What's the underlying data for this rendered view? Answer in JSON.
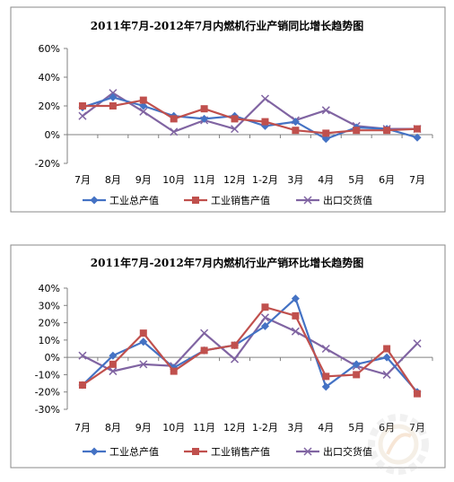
{
  "colors": {
    "s1": "#4472C4",
    "s2": "#C0504D",
    "s3": "#8064A2",
    "frame": "#888888",
    "axis": "#808080"
  },
  "legend": [
    "工业总产值",
    "工业销售产值",
    "出口交货值"
  ],
  "chart_data": [
    {
      "type": "line",
      "title": "2011年7月-2012年7月内燃机行业产销同比增长趋势图",
      "categories": [
        "7月",
        "8月",
        "9月",
        "10月",
        "11月",
        "12月",
        "1-2月",
        "3月",
        "4月",
        "5月",
        "6月",
        "7月"
      ],
      "yticks": [
        "60%",
        "40%",
        "20%",
        "0%",
        "-20%"
      ],
      "ylim": [
        -20,
        60
      ],
      "series": [
        {
          "name": "工业总产值",
          "values": [
            19,
            26,
            20,
            13,
            11,
            13,
            6,
            9,
            -3,
            5,
            4,
            -2
          ]
        },
        {
          "name": "工业销售产值",
          "values": [
            20,
            20,
            24,
            11,
            18,
            11,
            9,
            3,
            1,
            3,
            3,
            4
          ]
        },
        {
          "name": "出口交货值",
          "values": [
            13,
            29,
            16,
            2,
            10,
            4,
            25,
            10,
            17,
            6,
            4,
            4
          ]
        }
      ]
    },
    {
      "type": "line",
      "title": "2011年7月-2012年7月内燃机行业产销环比增长趋势图",
      "categories": [
        "7月",
        "8月",
        "9月",
        "10月",
        "11月",
        "12月",
        "1-2月",
        "3月",
        "4月",
        "5月",
        "6月",
        "7月"
      ],
      "yticks": [
        "40%",
        "30%",
        "20%",
        "10%",
        "0%",
        "-10%",
        "-20%",
        "-30%"
      ],
      "ylim": [
        -30,
        40
      ],
      "series": [
        {
          "name": "工业总产值",
          "values": [
            -16,
            1,
            9,
            -6,
            4,
            7,
            18,
            34,
            -17,
            -4,
            0,
            -20
          ]
        },
        {
          "name": "工业销售产值",
          "values": [
            -16,
            -4,
            14,
            -8,
            4,
            7,
            29,
            24,
            -11,
            -10,
            5,
            -21
          ]
        },
        {
          "name": "出口交货值",
          "values": [
            1,
            -8,
            -4,
            -5,
            14,
            -1,
            23,
            15,
            5,
            -5,
            -10,
            8
          ]
        }
      ]
    }
  ]
}
